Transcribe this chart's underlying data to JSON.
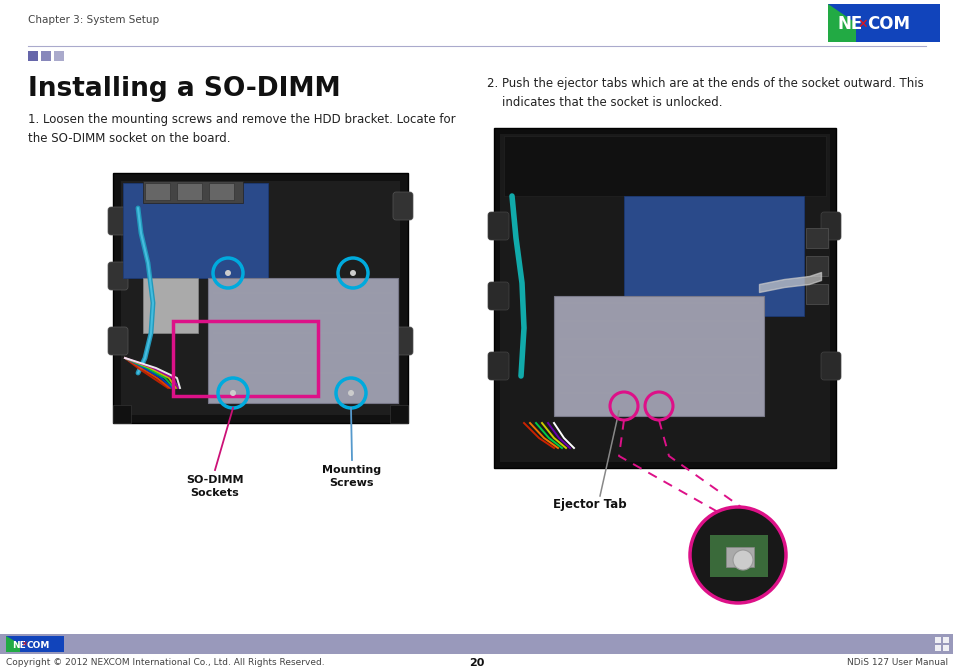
{
  "page_bg": "#ffffff",
  "header_text_left": "Chapter 3: System Setup",
  "header_separator_color": "#aaaacc",
  "header_squares": [
    "#6666aa",
    "#8888bb",
    "#aaaacc"
  ],
  "title": "Installing a SO-DIMM",
  "body_text1": "1. Loosen the mounting screws and remove the HDD bracket. Locate for\nthe SO-DIMM socket on the board.",
  "body_text2": "2. Push the ejector tabs which are at the ends of the socket outward. This\n    indicates that the socket is unlocked.",
  "label1_title": "SO-DIMM\nSockets",
  "label2_title": "Mounting\nScrews",
  "label3_title": "Ejector Tab",
  "footer_bar_color": "#9999bb",
  "footer_text_left": "Copyright © 2012 NEXCOM International Co., Ltd. All Rights Reserved.",
  "footer_text_center": "20",
  "footer_text_right": "NDiS 127 User Manual",
  "img1_bg": "#f0f0f0",
  "img2_bg": "#f0f0f0",
  "chassis_color": "#1a1a1a",
  "board_color": "#2a3a6a",
  "metal_color": "#888899",
  "highlight_color": "#dd1188",
  "circle_color": "#00aadd",
  "pink_circle_color": "#dd1188",
  "dashed_line_color": "#dd1188",
  "nexcom_logo_bg": "#1144bb",
  "nexcom_green": "#22aa44"
}
